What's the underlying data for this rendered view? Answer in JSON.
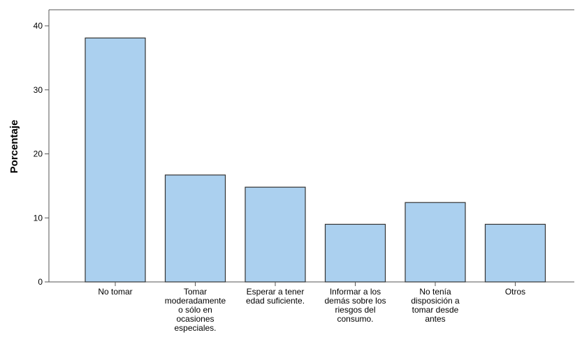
{
  "chart_data": {
    "type": "bar",
    "ylabel": "Porcentaje",
    "xlabel": "",
    "ylim": [
      0,
      40
    ],
    "yticks": [
      "0",
      "10",
      "20",
      "30",
      "40"
    ],
    "categories": [
      [
        "No tomar"
      ],
      [
        "Tomar",
        "moderadamente",
        "o sólo en",
        "ocasiones",
        "especiales."
      ],
      [
        "Esperar a tener",
        "edad suficiente."
      ],
      [
        "Informar a los",
        "demás sobre los",
        "riesgos del",
        "consumo."
      ],
      [
        "No tenía",
        "disposición a",
        "tomar desde",
        "antes"
      ],
      [
        "Otros"
      ]
    ],
    "values": [
      38.1,
      16.7,
      14.8,
      9.0,
      12.4,
      9.0
    ],
    "bar_color": "#abd0ef",
    "bar_stroke": "#333333",
    "grid": false
  }
}
